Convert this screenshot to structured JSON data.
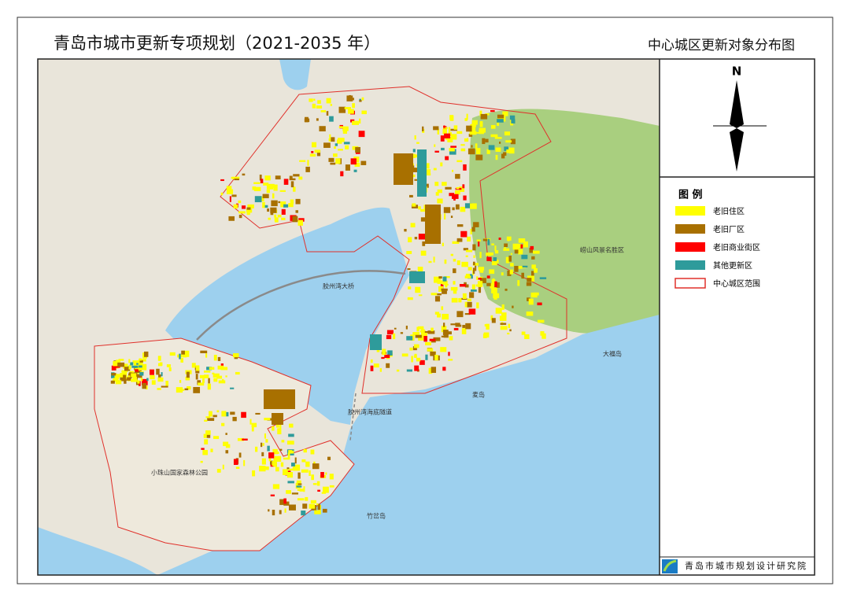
{
  "header": {
    "title": "青岛市城市更新专项规划（2021-2035 年）",
    "subtitle": "中心城区更新对象分布图"
  },
  "compass": {
    "label": "N"
  },
  "legend": {
    "title": "图  例",
    "items": [
      {
        "label": "老旧住区",
        "color": "#ffff00"
      },
      {
        "label": "老旧厂区",
        "color": "#a87000"
      },
      {
        "label": "老旧商业街区",
        "color": "#ff0000"
      },
      {
        "label": "其他更新区",
        "color": "#2e9b9b"
      },
      {
        "label": "中心城区范围",
        "color": "#e0302a"
      }
    ]
  },
  "map_labels": [
    "胶州湾大桥",
    "胶州湾海底隧道",
    "大福岛",
    "麦岛",
    "竹岔岛",
    "小珠山国家森林公园",
    "崂山风景名胜区"
  ],
  "footer": {
    "institute": "青岛市城市规划设计研究院"
  }
}
